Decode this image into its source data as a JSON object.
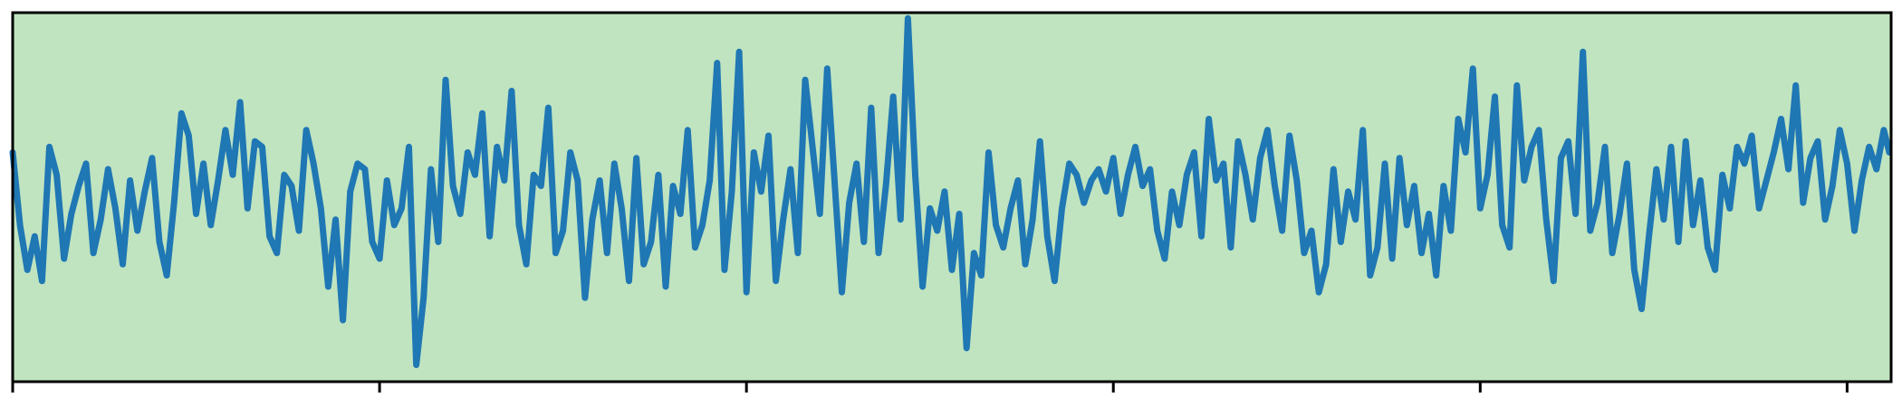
{
  "colors": {
    "plot_background": "#c0e4c0",
    "series_line": "#1f77b4",
    "axis": "#000000",
    "figure_background": "#ffffff"
  },
  "chart_data": {
    "type": "line",
    "title": "",
    "xlabel": "",
    "ylabel": "",
    "xlim": [
      0,
      1024
    ],
    "ylim": [
      -3.3,
      3.3
    ],
    "grid": false,
    "legend": "none",
    "x_ticks": [
      0,
      200,
      400,
      600,
      800,
      1000
    ],
    "x_tick_labels": [],
    "y_ticks": [],
    "series": [
      {
        "x": [
          0,
          4,
          8,
          12,
          16,
          20,
          24,
          28,
          32,
          36,
          40,
          44,
          48,
          52,
          56,
          60,
          64,
          68,
          72,
          76,
          80,
          84,
          88,
          92,
          96,
          100,
          104,
          108,
          112,
          116,
          120,
          124,
          128,
          132,
          136,
          140,
          144,
          148,
          152,
          156,
          160,
          164,
          168,
          172,
          176,
          180,
          184,
          188,
          192,
          196,
          200,
          204,
          208,
          212,
          216,
          220,
          224,
          228,
          232,
          236,
          240,
          244,
          248,
          252,
          256,
          260,
          264,
          268,
          272,
          276,
          280,
          284,
          288,
          292,
          296,
          300,
          304,
          308,
          312,
          316,
          320,
          324,
          328,
          332,
          336,
          340,
          344,
          348,
          352,
          356,
          360,
          364,
          368,
          372,
          376,
          380,
          384,
          388,
          392,
          396,
          400,
          404,
          408,
          412,
          416,
          420,
          424,
          428,
          432,
          436,
          440,
          444,
          448,
          452,
          456,
          460,
          464,
          468,
          472,
          476,
          480,
          484,
          488,
          492,
          496,
          500,
          504,
          508,
          512,
          516,
          520,
          524,
          528,
          532,
          536,
          540,
          544,
          548,
          552,
          556,
          560,
          564,
          568,
          572,
          576,
          580,
          584,
          588,
          592,
          596,
          600,
          604,
          608,
          612,
          616,
          620,
          624,
          628,
          632,
          636,
          640,
          644,
          648,
          652,
          656,
          660,
          664,
          668,
          672,
          676,
          680,
          684,
          688,
          692,
          696,
          700,
          704,
          708,
          712,
          716,
          720,
          724,
          728,
          732,
          736,
          740,
          744,
          748,
          752,
          756,
          760,
          764,
          768,
          772,
          776,
          780,
          784,
          788,
          792,
          796,
          800,
          804,
          808,
          812,
          816,
          820,
          824,
          828,
          832,
          836,
          840,
          844,
          848,
          852,
          856,
          860,
          864,
          868,
          872,
          876,
          880,
          884,
          888,
          892,
          896,
          900,
          904,
          908,
          912,
          916,
          920,
          924,
          928,
          932,
          936,
          940,
          944,
          948,
          952,
          956,
          960,
          964,
          968,
          972,
          976,
          980,
          984,
          988,
          992,
          996,
          1000,
          1004,
          1008,
          1012,
          1016,
          1020,
          1023
        ],
        "y": [
          0.8,
          -0.5,
          -1.3,
          -0.7,
          -1.5,
          0.9,
          0.4,
          -1.1,
          -0.3,
          0.2,
          0.6,
          -1.0,
          -0.4,
          0.5,
          -0.2,
          -1.2,
          0.3,
          -0.6,
          0.1,
          0.7,
          -0.8,
          -1.4,
          -0.1,
          1.5,
          1.1,
          -0.3,
          0.6,
          -0.5,
          0.3,
          1.2,
          0.4,
          1.7,
          -0.2,
          1.0,
          0.9,
          -0.7,
          -1.0,
          0.4,
          0.2,
          -0.6,
          1.2,
          0.6,
          -0.2,
          -1.6,
          -0.4,
          -2.2,
          0.1,
          0.6,
          0.5,
          -0.8,
          -1.1,
          0.3,
          -0.5,
          -0.2,
          0.9,
          -3.0,
          -1.8,
          0.5,
          -0.8,
          2.1,
          0.2,
          -0.3,
          0.8,
          0.4,
          1.5,
          -0.7,
          0.9,
          0.3,
          1.9,
          -0.5,
          -1.2,
          0.4,
          0.2,
          1.6,
          -1.0,
          -0.6,
          0.8,
          0.3,
          -1.8,
          -0.4,
          0.3,
          -1.0,
          0.6,
          -0.2,
          -1.5,
          0.7,
          -1.2,
          -0.8,
          0.4,
          -1.6,
          0.2,
          -0.3,
          1.2,
          -0.9,
          -0.5,
          0.3,
          2.4,
          -1.3,
          0.1,
          2.6,
          -1.7,
          0.8,
          0.1,
          1.1,
          -1.5,
          -0.4,
          0.5,
          -1.0,
          2.1,
          0.9,
          -0.3,
          2.3,
          0.3,
          -1.7,
          -0.1,
          0.6,
          -0.8,
          1.6,
          -1.0,
          0.2,
          1.8,
          -0.4,
          3.2,
          0.4,
          -1.6,
          -0.2,
          -0.6,
          0.1,
          -1.3,
          -0.3,
          -2.7,
          -1.0,
          -1.4,
          0.8,
          -0.5,
          -0.9,
          -0.2,
          0.3,
          -1.2,
          -0.4,
          1.0,
          -0.7,
          -1.5,
          -0.2,
          0.6,
          0.4,
          -0.1,
          0.3,
          0.5,
          0.1,
          0.7,
          -0.3,
          0.4,
          0.9,
          0.2,
          0.5,
          -0.6,
          -1.1,
          0.1,
          -0.5,
          0.4,
          0.8,
          -0.7,
          1.4,
          0.3,
          0.6,
          -0.9,
          1.0,
          0.4,
          -0.4,
          0.7,
          1.2,
          0.2,
          -0.6,
          1.1,
          0.3,
          -1.0,
          -0.6,
          -1.7,
          -1.2,
          0.5,
          -0.8,
          0.1,
          -0.4,
          1.2,
          -1.4,
          -0.9,
          0.6,
          -1.1,
          0.7,
          -0.5,
          0.2,
          -1.0,
          -0.3,
          -1.4,
          0.2,
          -0.6,
          1.4,
          0.8,
          2.3,
          -0.2,
          0.4,
          1.8,
          -0.5,
          -0.9,
          2.0,
          0.3,
          0.9,
          1.2,
          -0.4,
          -1.5,
          0.7,
          1.0,
          -0.3,
          2.6,
          -0.6,
          -0.1,
          0.9,
          -1.0,
          -0.3,
          0.6,
          -1.3,
          -2.0,
          -0.7,
          0.5,
          -0.4,
          0.9,
          -0.8,
          1.0,
          -0.5,
          0.3,
          -0.9,
          -1.3,
          0.4,
          -0.2,
          0.9,
          0.6,
          1.1,
          -0.2,
          0.3,
          0.8,
          1.4,
          0.5,
          2.0,
          -0.1,
          0.7,
          1.0,
          -0.4,
          0.2,
          1.2,
          0.6,
          -0.6,
          0.3,
          0.9,
          0.5,
          1.2,
          0.8
        ]
      }
    ]
  }
}
